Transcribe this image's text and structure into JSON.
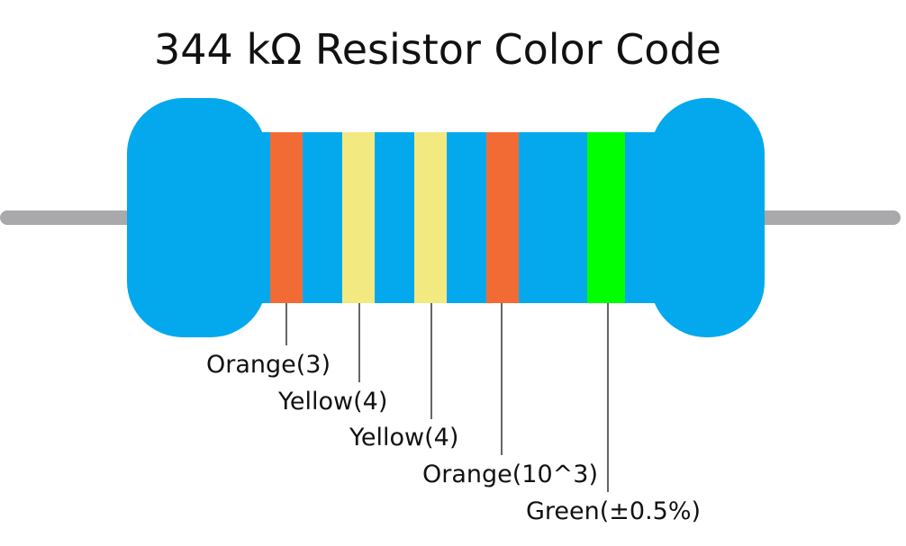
{
  "title": "344 kΩ Resistor Color Code",
  "colors": {
    "body": "#03a9ec",
    "lead": "#a9a9ab",
    "leader_line": "#000000"
  },
  "bands": [
    {
      "color_name": "Orange",
      "hex": "#f26b35",
      "role": "digit",
      "value": "3",
      "label": "Orange(3)"
    },
    {
      "color_name": "Yellow",
      "hex": "#f3e981",
      "role": "digit",
      "value": "4",
      "label": "Yellow(4)"
    },
    {
      "color_name": "Yellow",
      "hex": "#f3e981",
      "role": "digit",
      "value": "4",
      "label": "Yellow(4)"
    },
    {
      "color_name": "Orange",
      "hex": "#f26b35",
      "role": "multiplier",
      "value": "10^3",
      "label": "Orange(10^3)"
    },
    {
      "color_name": "Green",
      "hex": "#00ff00",
      "role": "tolerance",
      "value": "±0.5%",
      "label": "Green(±0.5%)"
    }
  ]
}
